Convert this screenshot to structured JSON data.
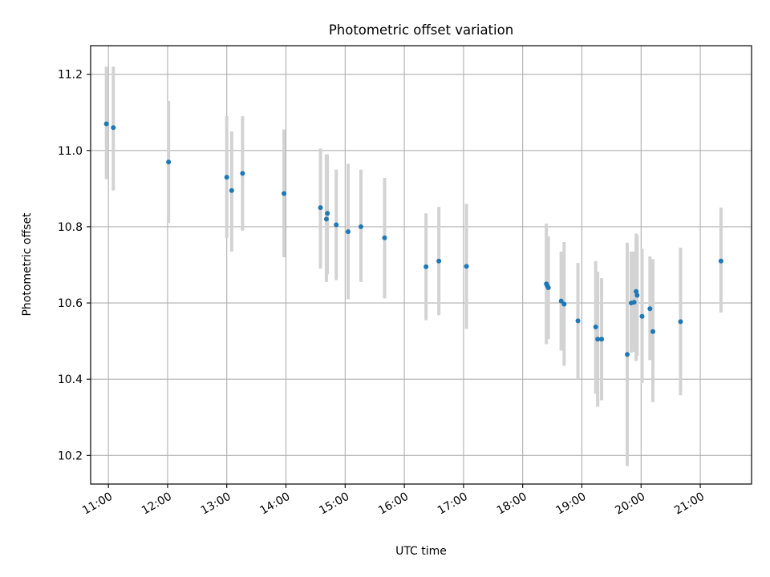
{
  "chart_data": {
    "type": "scatter",
    "title": "Photometric offset variation",
    "xlabel": "UTC time",
    "ylabel": "Photometric offset",
    "x_range": [
      "10:42",
      "21:52"
    ],
    "ylim": [
      10.125,
      11.275
    ],
    "x_ticks": [
      "11:00",
      "12:00",
      "13:00",
      "14:00",
      "15:00",
      "16:00",
      "17:00",
      "18:00",
      "19:00",
      "20:00",
      "21:00"
    ],
    "y_ticks": [
      "10.2",
      "10.4",
      "10.6",
      "10.8",
      "11.0",
      "11.2"
    ],
    "grid": true,
    "marker_color": "#1f77b4",
    "errorbar_color": "#d3d3d3",
    "points": [
      {
        "t": "10:58",
        "y": 11.07,
        "lo": 10.925,
        "hi": 11.22
      },
      {
        "t": "11:05",
        "y": 11.06,
        "lo": 10.895,
        "hi": 11.22
      },
      {
        "t": "12:01",
        "y": 10.97,
        "lo": 10.81,
        "hi": 11.13
      },
      {
        "t": "13:00",
        "y": 10.93,
        "lo": 10.77,
        "hi": 11.09
      },
      {
        "t": "13:05",
        "y": 10.895,
        "lo": 10.735,
        "hi": 11.05
      },
      {
        "t": "13:16",
        "y": 10.94,
        "lo": 10.79,
        "hi": 11.09
      },
      {
        "t": "13:58",
        "y": 10.887,
        "lo": 10.72,
        "hi": 11.055
      },
      {
        "t": "14:35",
        "y": 10.85,
        "lo": 10.69,
        "hi": 11.005
      },
      {
        "t": "14:41",
        "y": 10.82,
        "lo": 10.655,
        "hi": 10.99
      },
      {
        "t": "14:42",
        "y": 10.835,
        "lo": 10.675,
        "hi": 10.99
      },
      {
        "t": "14:51",
        "y": 10.805,
        "lo": 10.66,
        "hi": 10.95
      },
      {
        "t": "15:03",
        "y": 10.787,
        "lo": 10.61,
        "hi": 10.965
      },
      {
        "t": "15:16",
        "y": 10.8,
        "lo": 10.655,
        "hi": 10.95
      },
      {
        "t": "15:40",
        "y": 10.771,
        "lo": 10.612,
        "hi": 10.928
      },
      {
        "t": "16:22",
        "y": 10.695,
        "lo": 10.555,
        "hi": 10.835
      },
      {
        "t": "16:35",
        "y": 10.71,
        "lo": 10.568,
        "hi": 10.852
      },
      {
        "t": "17:03",
        "y": 10.696,
        "lo": 10.532,
        "hi": 10.86
      },
      {
        "t": "18:24",
        "y": 10.65,
        "lo": 10.492,
        "hi": 10.808
      },
      {
        "t": "18:25",
        "y": 10.645,
        "lo": 10.505,
        "hi": 10.775
      },
      {
        "t": "18:26",
        "y": 10.64,
        "lo": 10.505,
        "hi": 10.775
      },
      {
        "t": "18:39",
        "y": 10.605,
        "lo": 10.475,
        "hi": 10.735
      },
      {
        "t": "18:42",
        "y": 10.597,
        "lo": 10.435,
        "hi": 10.76
      },
      {
        "t": "18:56",
        "y": 10.553,
        "lo": 10.4,
        "hi": 10.705
      },
      {
        "t": "19:14",
        "y": 10.537,
        "lo": 10.362,
        "hi": 10.71
      },
      {
        "t": "19:16",
        "y": 10.505,
        "lo": 10.328,
        "hi": 10.682
      },
      {
        "t": "19:20",
        "y": 10.505,
        "lo": 10.345,
        "hi": 10.665
      },
      {
        "t": "19:46",
        "y": 10.465,
        "lo": 10.172,
        "hi": 10.758
      },
      {
        "t": "19:50",
        "y": 10.6,
        "lo": 10.47,
        "hi": 10.735
      },
      {
        "t": "19:53",
        "y": 10.602,
        "lo": 10.472,
        "hi": 10.735
      },
      {
        "t": "19:55",
        "y": 10.63,
        "lo": 10.448,
        "hi": 10.782
      },
      {
        "t": "19:56",
        "y": 10.62,
        "lo": 10.462,
        "hi": 10.778
      },
      {
        "t": "20:01",
        "y": 10.565,
        "lo": 10.39,
        "hi": 10.742
      },
      {
        "t": "20:09",
        "y": 10.585,
        "lo": 10.45,
        "hi": 10.722
      },
      {
        "t": "20:12",
        "y": 10.525,
        "lo": 10.34,
        "hi": 10.715
      },
      {
        "t": "20:40",
        "y": 10.551,
        "lo": 10.358,
        "hi": 10.745
      },
      {
        "t": "21:21",
        "y": 10.71,
        "lo": 10.575,
        "hi": 10.85
      }
    ]
  }
}
